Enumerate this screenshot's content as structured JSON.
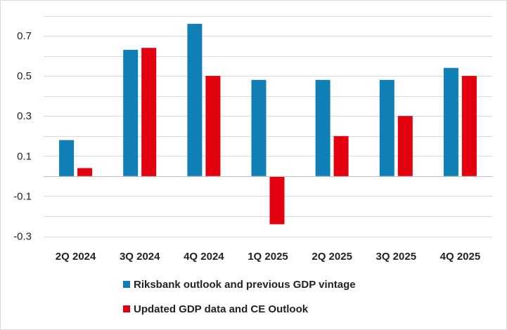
{
  "chart_data": {
    "type": "bar",
    "title": "",
    "xlabel": "",
    "ylabel": "",
    "categories": [
      "2Q 2024",
      "3Q 2024",
      "4Q 2024",
      "1Q 2025",
      "2Q 2025",
      "3Q 2025",
      "4Q 2025"
    ],
    "series": [
      {
        "name": "Riksbank outlook and previous GDP vintage",
        "color": "#0f7fb5",
        "values": [
          0.18,
          0.63,
          0.76,
          0.48,
          0.48,
          0.48,
          0.54
        ]
      },
      {
        "name": "Updated GDP data and CE Outlook",
        "color": "#e3000f",
        "values": [
          0.04,
          0.64,
          0.5,
          -0.24,
          0.2,
          0.3,
          0.5
        ]
      }
    ],
    "ylim": [
      -0.3,
      0.8
    ],
    "yticks": [
      -0.3,
      -0.1,
      0.1,
      0.3,
      0.5,
      0.7
    ],
    "ytick_labels": [
      "-0.3",
      "-0.1",
      "0.1",
      "0.3",
      "0.5",
      "0.7"
    ],
    "grid": true,
    "legend_position": "bottom"
  }
}
